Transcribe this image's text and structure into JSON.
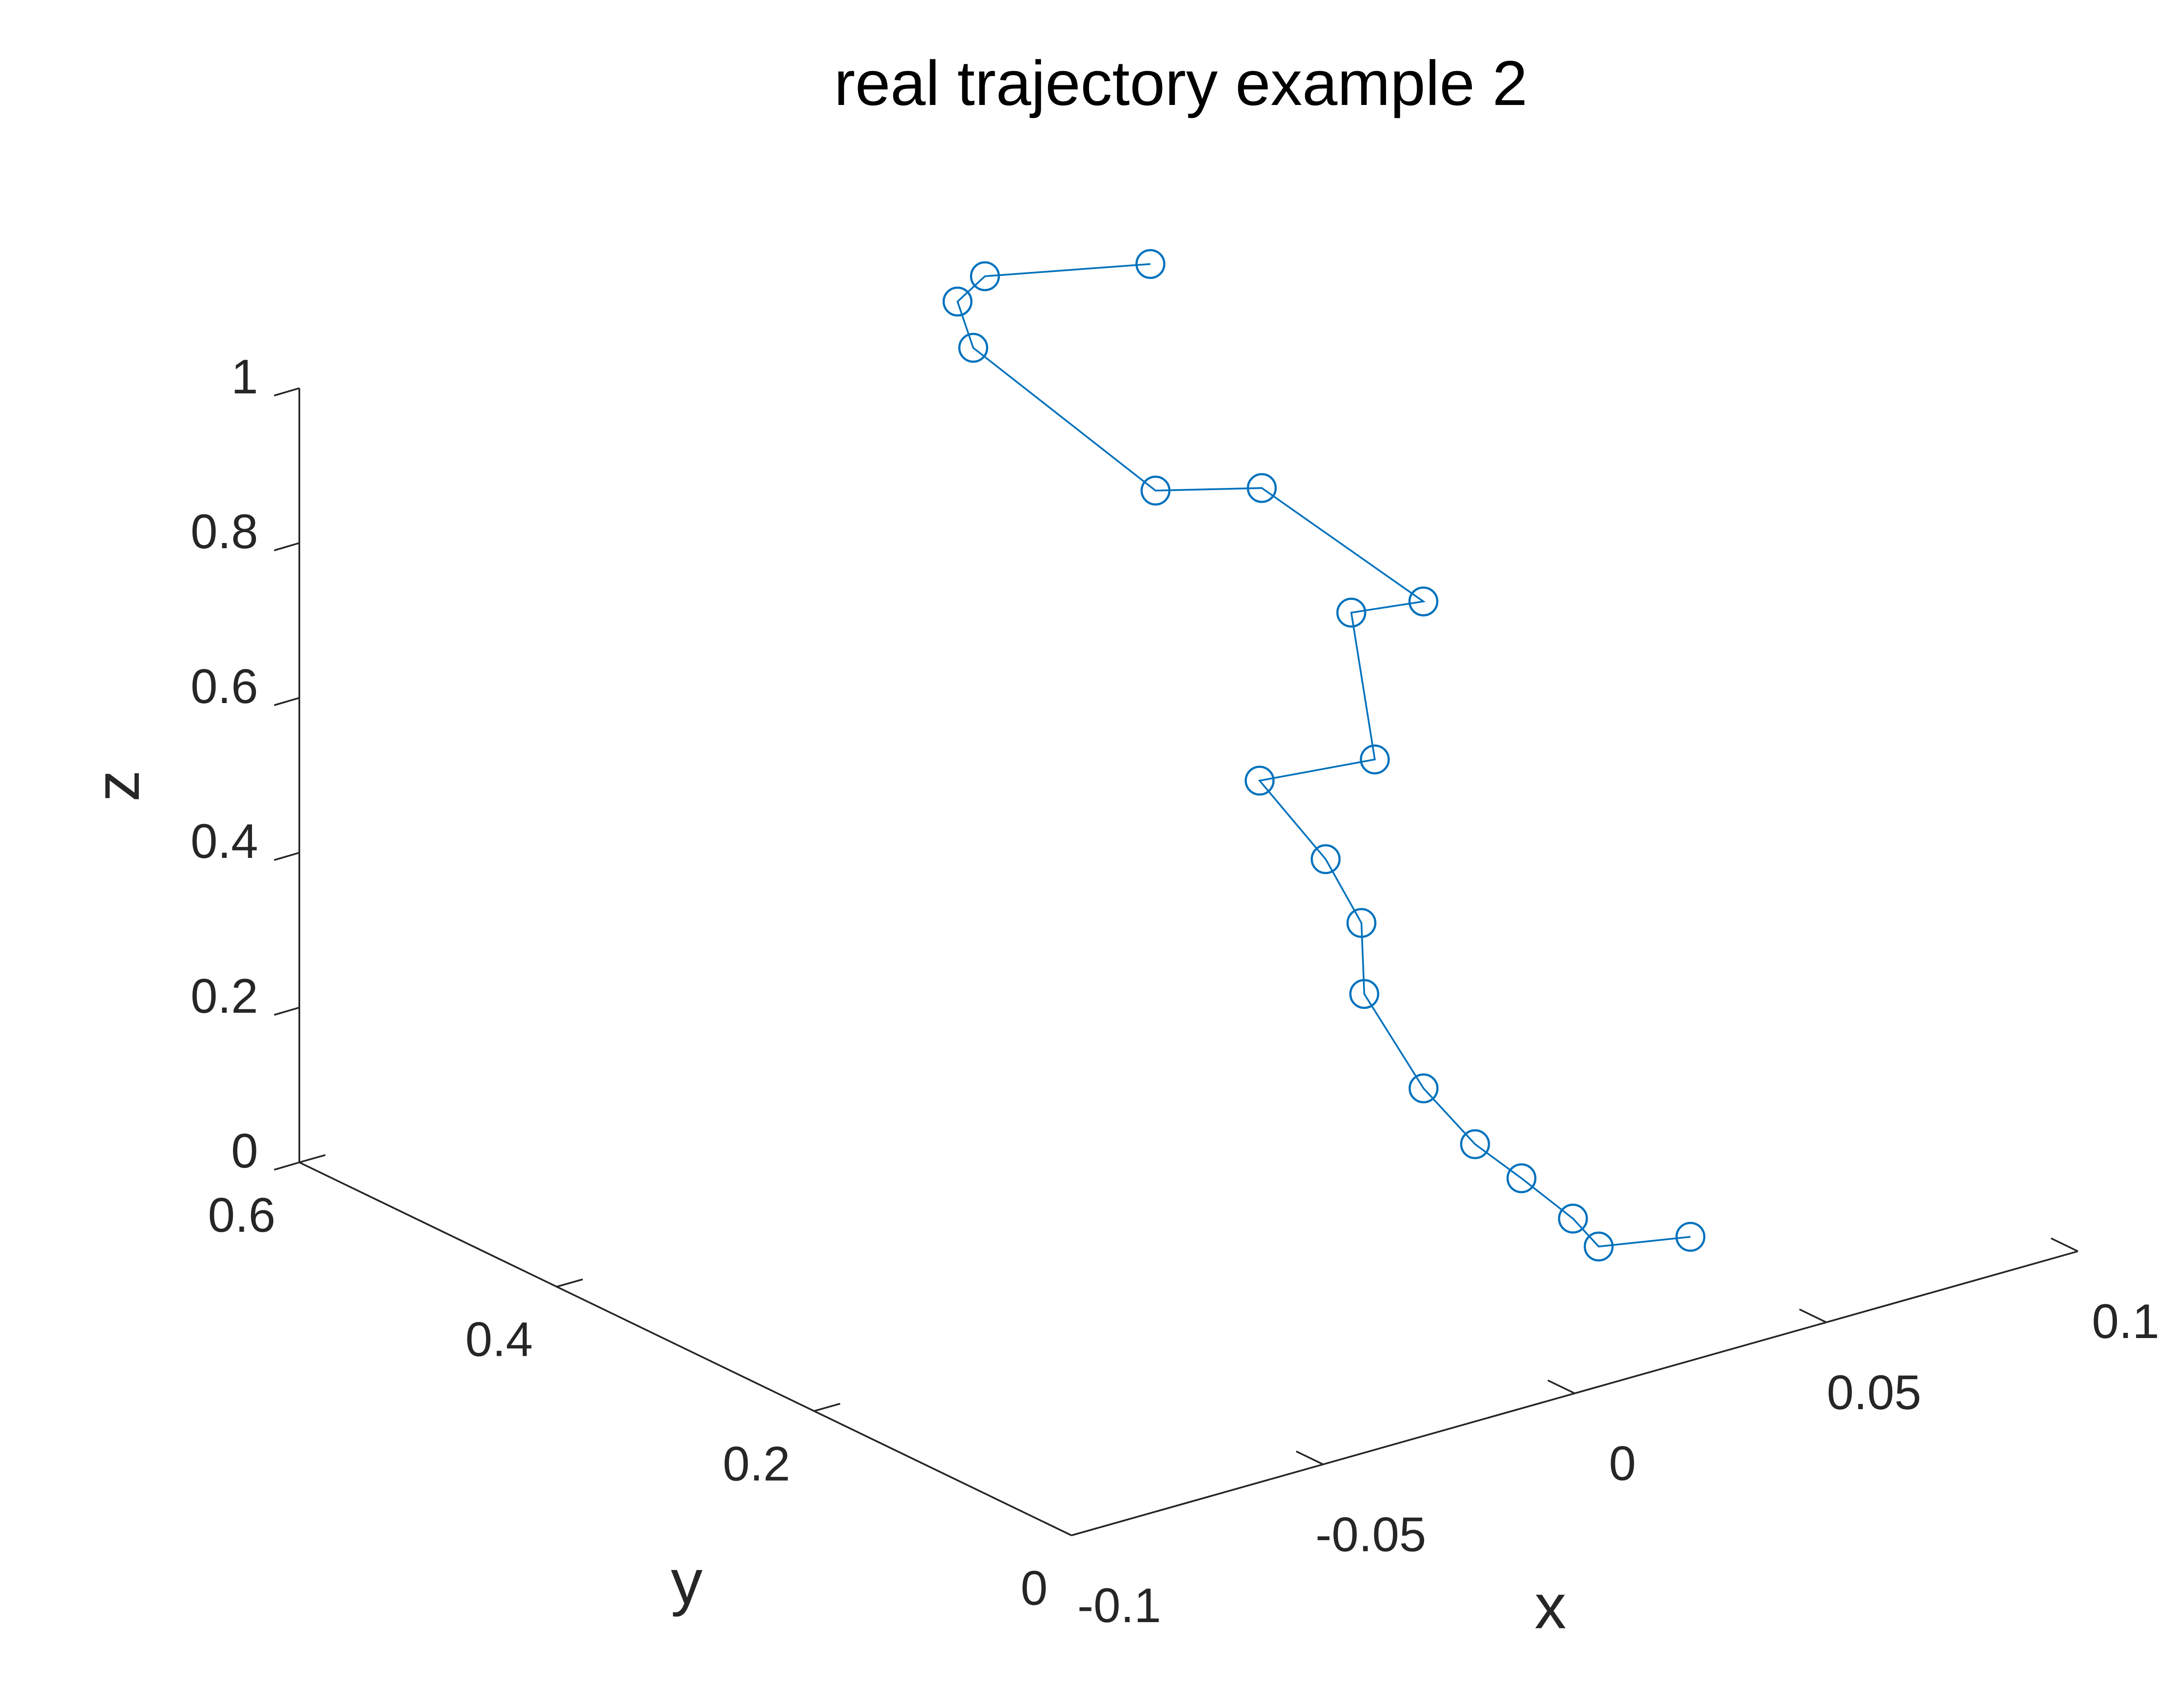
{
  "chart_data": {
    "type": "line",
    "title": "real trajectory example 2",
    "xlabel": "x",
    "ylabel": "y",
    "zlabel": "z",
    "xlim": [
      -0.1,
      0.1
    ],
    "ylim": [
      0,
      0.6
    ],
    "zlim": [
      0,
      1
    ],
    "xticks": [
      "-0.1",
      "-0.05",
      "0",
      "0.05",
      "0.1"
    ],
    "yticks": [
      "0",
      "0.2",
      "0.4",
      "0.6"
    ],
    "zticks": [
      "0",
      "0.2",
      "0.4",
      "0.6",
      "0.8",
      "1"
    ],
    "grid": false,
    "colors": {
      "series": "#0072BD",
      "axes": "#262626",
      "background": "#ffffff"
    },
    "series": [
      {
        "marker": "circle",
        "points": [
          {
            "x": 0.023,
            "y": 0.0,
            "z": 0.16
          },
          {
            "x": 0.015,
            "y": 0.04,
            "z": 0.13
          },
          {
            "x": 0.015,
            "y": 0.06,
            "z": 0.15
          },
          {
            "x": 0.015,
            "y": 0.1,
            "z": 0.17
          },
          {
            "x": 0.016,
            "y": 0.14,
            "z": 0.18
          },
          {
            "x": 0.016,
            "y": 0.18,
            "z": 0.22
          },
          {
            "x": 0.017,
            "y": 0.23,
            "z": 0.3
          },
          {
            "x": 0.019,
            "y": 0.24,
            "z": 0.38
          },
          {
            "x": 0.017,
            "y": 0.26,
            "z": 0.45
          },
          {
            "x": 0.009,
            "y": 0.28,
            "z": 0.55
          },
          {
            "x": 0.037,
            "y": 0.3,
            "z": 0.51
          },
          {
            "x": 0.04,
            "y": 0.33,
            "z": 0.67
          },
          {
            "x": 0.062,
            "y": 0.36,
            "z": 0.62
          },
          {
            "x": 0.035,
            "y": 0.38,
            "z": 0.8
          },
          {
            "x": 0.019,
            "y": 0.4,
            "z": 0.81
          },
          {
            "x": -0.007,
            "y": 0.44,
            "z": 1.01
          },
          {
            "x": -0.005,
            "y": 0.46,
            "z": 1.05
          },
          {
            "x": 0.003,
            "y": 0.47,
            "z": 1.06
          },
          {
            "x": 0.041,
            "y": 0.49,
            "z": 0.99
          }
        ]
      }
    ]
  }
}
